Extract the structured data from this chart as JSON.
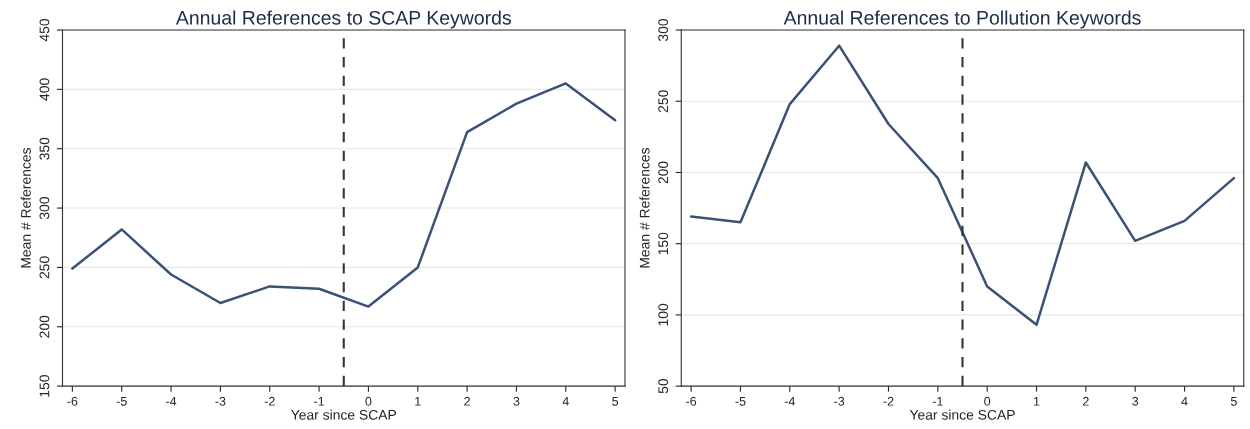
{
  "chart_data": [
    {
      "type": "line",
      "title": "Annual References to SCAP Keywords",
      "xlabel": "Year since SCAP",
      "ylabel": "Mean # References",
      "x": [
        -6,
        -5,
        -4,
        -3,
        -2,
        -1,
        0,
        1,
        2,
        3,
        4,
        5
      ],
      "series": [
        {
          "color": "#3b5275",
          "values": [
            249,
            282,
            244,
            220,
            234,
            232,
            217,
            250,
            364,
            388,
            405,
            374
          ]
        }
      ],
      "xlim": [
        -6.2,
        5.2
      ],
      "xticks": [
        -6,
        -5,
        -4,
        -3,
        -2,
        -1,
        0,
        1,
        2,
        3,
        4,
        5
      ],
      "ylim": [
        150,
        450
      ],
      "yticks": [
        150,
        200,
        250,
        300,
        350,
        400,
        450
      ],
      "grid": "y",
      "ref_lines": [
        {
          "axis": "x",
          "value": -0.5,
          "color": "#333333",
          "line_style": "dashed"
        }
      ]
    },
    {
      "type": "line",
      "title": "Annual References to Pollution Keywords",
      "xlabel": "Year since SCAP",
      "ylabel": "Mean # References",
      "x": [
        -6,
        -5,
        -4,
        -3,
        -2,
        -1,
        0,
        1,
        2,
        3,
        4,
        5
      ],
      "series": [
        {
          "color": "#3b5275",
          "values": [
            169,
            165,
            248,
            289,
            234,
            196,
            120,
            93,
            207,
            152,
            166,
            196
          ]
        }
      ],
      "xlim": [
        -6.2,
        5.2
      ],
      "xticks": [
        -6,
        -5,
        -4,
        -3,
        -2,
        -1,
        0,
        1,
        2,
        3,
        4,
        5
      ],
      "ylim": [
        50,
        300
      ],
      "yticks": [
        50,
        100,
        150,
        200,
        250,
        300
      ],
      "grid": "y",
      "ref_lines": [
        {
          "axis": "x",
          "value": -0.5,
          "color": "#333333",
          "line_style": "dashed"
        }
      ]
    }
  ]
}
